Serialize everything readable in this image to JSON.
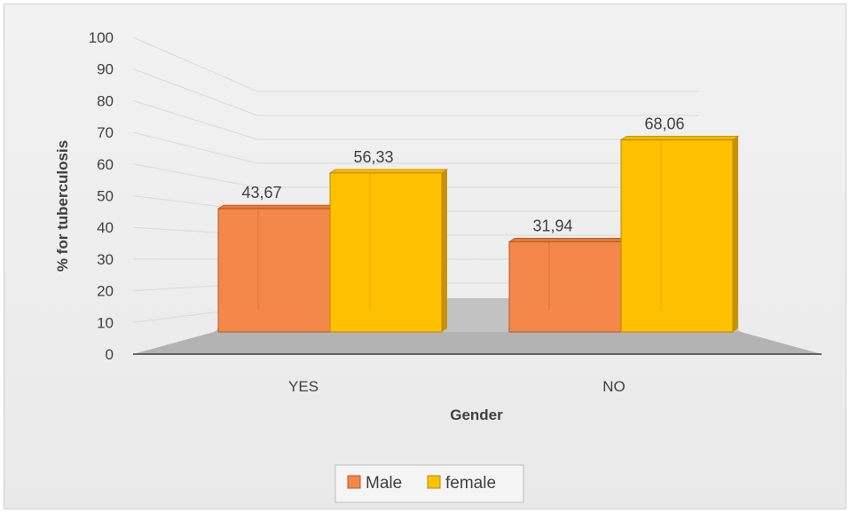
{
  "chart_data": {
    "type": "bar",
    "categories": [
      "YES",
      "NO"
    ],
    "series": [
      {
        "name": "Male",
        "values": [
          43.67,
          31.94
        ],
        "labels": [
          "43,67",
          "31,94"
        ]
      },
      {
        "name": "female",
        "values": [
          56.33,
          68.06
        ],
        "labels": [
          "56,33",
          "68,06"
        ]
      }
    ],
    "xlabel": "Gender",
    "ylabel": "% for tuberculosis",
    "ylim": [
      0,
      100
    ],
    "yticks": [
      "0",
      "10",
      "20",
      "30",
      "40",
      "50",
      "60",
      "70",
      "80",
      "90",
      "100"
    ],
    "legend_position": "bottom",
    "grid": true,
    "three_d": true,
    "colors": {
      "Male": "#f4874a",
      "female": "#ffc000"
    }
  }
}
